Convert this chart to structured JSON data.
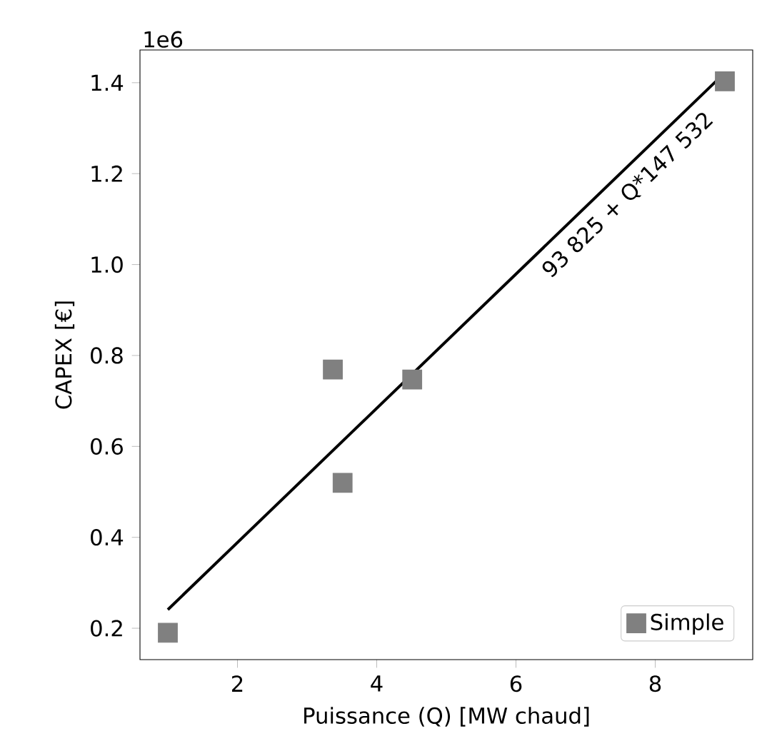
{
  "chart_data": {
    "type": "scatter",
    "xlabel": "Puissance (Q) [MW chaud]",
    "ylabel": "CAPEX [€]",
    "xlim": [
      0.6,
      9.4
    ],
    "ylim": [
      0.131,
      1.472
    ],
    "xticks": [
      2,
      4,
      6,
      8
    ],
    "yticks": [
      0.2,
      0.4,
      0.6,
      0.8,
      {
        "value": 1.0,
        "label": "1.0"
      },
      1.2,
      1.4
    ],
    "series": [
      {
        "name": "Simple",
        "color": "#808080",
        "marker": "square",
        "x": [
          1.0,
          3.37,
          3.51,
          4.51,
          9.0
        ],
        "values": [
          0.19,
          0.769,
          0.52,
          0.747,
          1.403
        ]
      },
      {
        "type": "line",
        "color": "#000000",
        "marker": "none",
        "x": [
          1,
          9
        ],
        "values": [
          0.241,
          1.422
        ]
      }
    ],
    "annotations": [
      "1e6",
      "93 825 + Q*147 532"
    ],
    "legend": "bottom right",
    "grid": false
  }
}
